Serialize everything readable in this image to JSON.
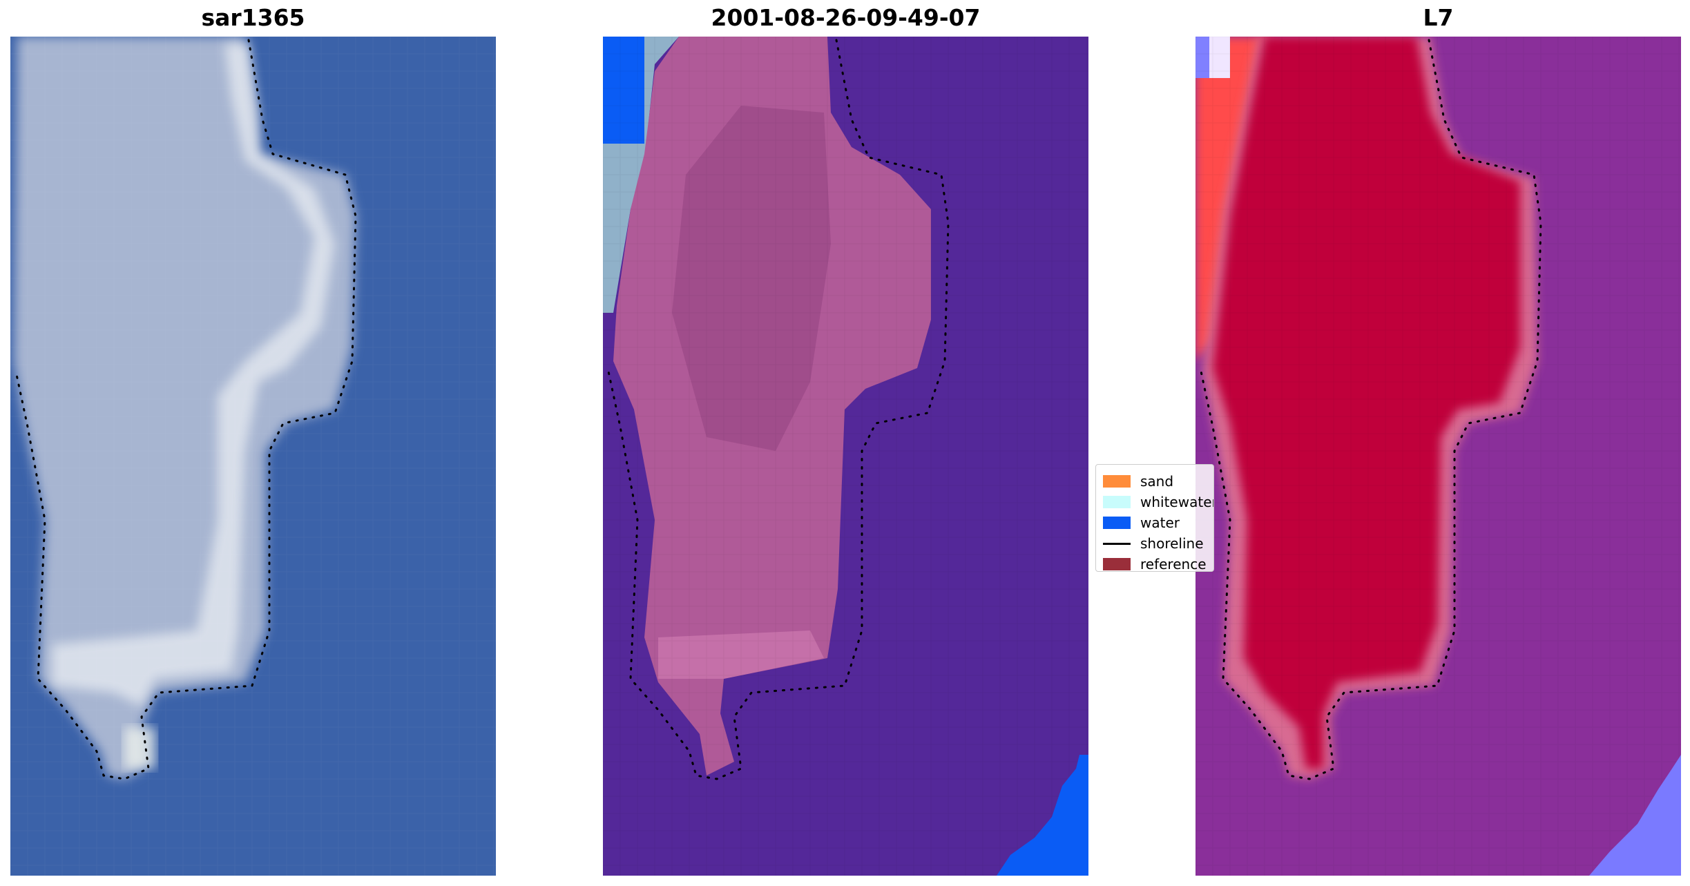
{
  "panels": [
    {
      "title": "sar1365"
    },
    {
      "title": "2001-08-26-09-49-07"
    },
    {
      "title": "L7"
    }
  ],
  "legend": {
    "items": [
      {
        "label": "sand",
        "type": "patch",
        "color": "#ff8c3a"
      },
      {
        "label": "whitewater",
        "type": "patch",
        "color": "#c8fcfc"
      },
      {
        "label": "water",
        "type": "patch",
        "color": "#0a5cf5"
      },
      {
        "label": "shoreline",
        "type": "line",
        "color": "#000000"
      },
      {
        "label": "reference",
        "type": "patch",
        "color": "#9a2e3a"
      }
    ]
  },
  "colors": {
    "panel1_water": "#3b62a9",
    "panel1_land": "#a7b5d1",
    "panel1_bright": "#e8ecf2",
    "panel2_water": "#542899",
    "panel2_land": "#b05a98",
    "panel2_water_class": "#0a5cf5",
    "panel2_whitewater": "#90b1c9",
    "panel3_bg": "#8a2f9a",
    "panel3_land": "#c0063a",
    "panel3_edge_red": "#ff4b4b",
    "panel3_lightblue": "#7a7aff"
  }
}
